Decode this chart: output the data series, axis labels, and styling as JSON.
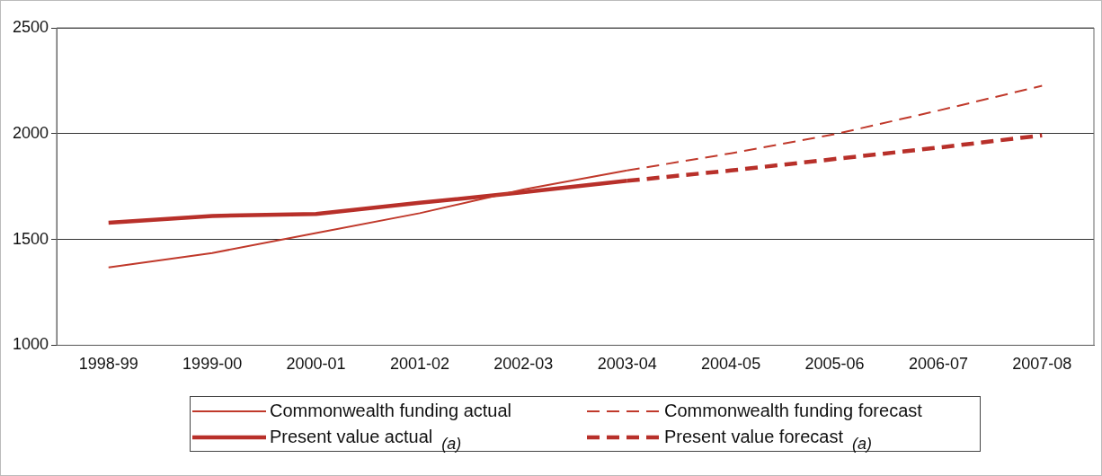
{
  "chart_data": {
    "type": "line",
    "categories": [
      "1998-99",
      "1999-00",
      "2000-01",
      "2001-02",
      "2002-03",
      "2003-04",
      "2004-05",
      "2005-06",
      "2006-07",
      "2007-08"
    ],
    "series": [
      {
        "name": "Commonwealth funding actual",
        "color": "#c0392b",
        "line_style": "solid",
        "values": [
          1368,
          1436,
          1530,
          1624,
          1736,
          1826,
          null,
          null,
          null,
          null
        ]
      },
      {
        "name": "Commonwealth funding forecast",
        "color": "#c0392b",
        "line_style": "dashed",
        "values": [
          null,
          null,
          null,
          null,
          null,
          1826,
          1907,
          1997,
          2109,
          2226
        ]
      },
      {
        "name": "Present value actual",
        "color": "#b8302a",
        "line_style": "solid",
        "values": [
          1579,
          1611,
          1620,
          1673,
          1723,
          1777,
          null,
          null,
          null,
          null
        ]
      },
      {
        "name": "Present value forecast",
        "color": "#b8302a",
        "line_style": "dashed",
        "values": [
          null,
          null,
          null,
          null,
          null,
          1777,
          1826,
          1880,
          1934,
          1992
        ]
      }
    ],
    "ylim": [
      1000,
      2500
    ],
    "yticks": [
      1000,
      1500,
      2000,
      2500
    ],
    "grid": "y",
    "legend": "bottom",
    "marker": "none",
    "annotations": [
      "(a)",
      "(a)"
    ]
  }
}
